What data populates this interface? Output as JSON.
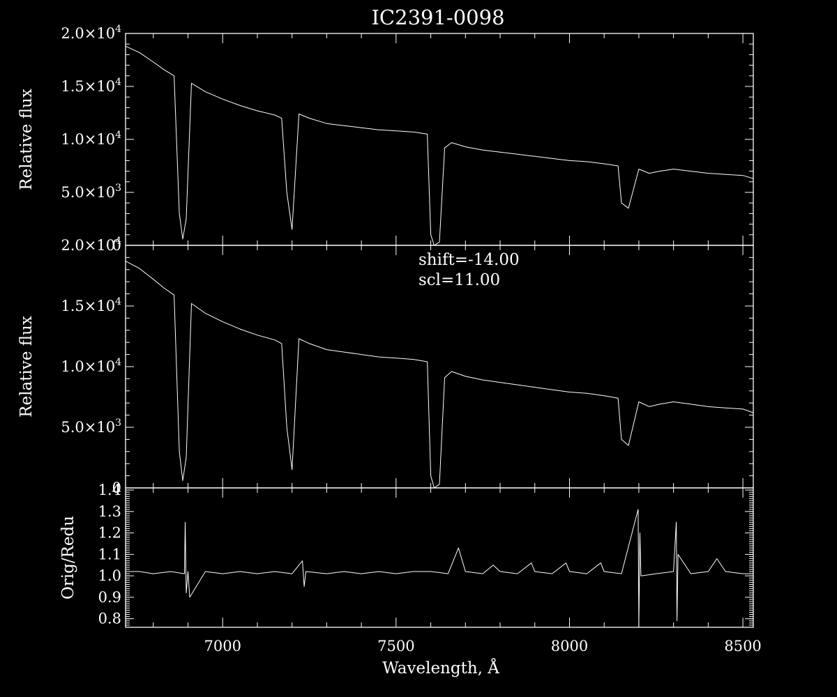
{
  "chart_data": [
    {
      "type": "line",
      "title": "IC2391-0098",
      "xlabel": "",
      "ylabel": "Relative flux",
      "xlim": [
        6720,
        8530
      ],
      "ylim": [
        0,
        20000
      ],
      "yticks": [
        0,
        5000,
        10000,
        15000,
        20000
      ],
      "ytick_labels": [
        {
          "mant": "0",
          "exp": ""
        },
        {
          "mant": "5.0×10",
          "exp": "3"
        },
        {
          "mant": "1.0×10",
          "exp": "4"
        },
        {
          "mant": "1.5×10",
          "exp": "4"
        },
        {
          "mant": "2.0×10",
          "exp": "4"
        }
      ],
      "series": [
        {
          "x": [
            6720,
            6760,
            6800,
            6830,
            6860,
            6875,
            6885,
            6895,
            6910,
            6950,
            7000,
            7050,
            7100,
            7150,
            7170,
            7185,
            7200,
            7220,
            7250,
            7300,
            7350,
            7400,
            7450,
            7500,
            7550,
            7590,
            7600,
            7610,
            7625,
            7640,
            7660,
            7700,
            7750,
            7800,
            7850,
            7900,
            7950,
            8000,
            8050,
            8100,
            8140,
            8150,
            8170,
            8200,
            8230,
            8260,
            8300,
            8350,
            8400,
            8450,
            8500,
            8530
          ],
          "y": [
            18800,
            18200,
            17300,
            16600,
            16000,
            3000,
            600,
            2500,
            15300,
            14500,
            13800,
            13200,
            12700,
            12300,
            12000,
            5000,
            1500,
            12400,
            12000,
            11500,
            11300,
            11100,
            10900,
            10800,
            10700,
            10500,
            1000,
            0,
            300,
            9200,
            9700,
            9300,
            9000,
            8800,
            8600,
            8400,
            8200,
            8000,
            7900,
            7700,
            7500,
            4000,
            3500,
            7200,
            6800,
            7000,
            7200,
            7000,
            6800,
            6700,
            6600,
            6300
          ]
        }
      ]
    },
    {
      "type": "line",
      "xlabel": "",
      "ylabel": "Relative flux",
      "xlim": [
        6720,
        8530
      ],
      "ylim": [
        0,
        20000
      ],
      "yticks": [
        0,
        5000,
        10000,
        15000,
        20000
      ],
      "ytick_labels": [
        {
          "mant": "0",
          "exp": ""
        },
        {
          "mant": "5.0×10",
          "exp": "3"
        },
        {
          "mant": "1.0×10",
          "exp": "4"
        },
        {
          "mant": "1.5×10",
          "exp": "4"
        },
        {
          "mant": "2.0×10",
          "exp": "4"
        }
      ],
      "annotations": [
        "shift=-14.00",
        "scl=11.00"
      ],
      "series": [
        {
          "x": [
            6720,
            6760,
            6800,
            6830,
            6860,
            6875,
            6885,
            6895,
            6910,
            6950,
            7000,
            7050,
            7100,
            7150,
            7170,
            7185,
            7200,
            7220,
            7250,
            7300,
            7350,
            7400,
            7450,
            7500,
            7550,
            7590,
            7600,
            7610,
            7625,
            7640,
            7660,
            7700,
            7750,
            7800,
            7850,
            7900,
            7950,
            8000,
            8050,
            8100,
            8140,
            8150,
            8170,
            8200,
            8230,
            8260,
            8300,
            8350,
            8400,
            8450,
            8500,
            8530
          ],
          "y": [
            18700,
            18100,
            17200,
            16500,
            15900,
            3000,
            600,
            2500,
            15200,
            14400,
            13700,
            13100,
            12600,
            12200,
            11900,
            5000,
            1500,
            12300,
            11900,
            11400,
            11200,
            11000,
            10800,
            10700,
            10600,
            10400,
            1000,
            0,
            300,
            9100,
            9600,
            9200,
            8900,
            8700,
            8500,
            8300,
            8100,
            7900,
            7800,
            7600,
            7400,
            4000,
            3500,
            7100,
            6700,
            6900,
            7100,
            6900,
            6700,
            6600,
            6500,
            6200
          ]
        }
      ]
    },
    {
      "type": "line",
      "xlabel": "Wavelength, Å",
      "ylabel": "Orig/Redu",
      "xlim": [
        6720,
        8530
      ],
      "ylim": [
        0.76,
        1.41
      ],
      "yticks": [
        0.8,
        0.9,
        1.0,
        1.1,
        1.2,
        1.3,
        1.4
      ],
      "ytick_labels": [
        "0.8",
        "0.9",
        "1.0",
        "1.1",
        "1.2",
        "1.3",
        "1.4"
      ],
      "xticks": [
        7000,
        7500,
        8000,
        8500
      ],
      "xtick_labels": [
        "7000",
        "7500",
        "8000",
        "8500"
      ],
      "series": [
        {
          "x": [
            6720,
            6760,
            6800,
            6850,
            6890,
            6892,
            6895,
            6900,
            6905,
            6950,
            7000,
            7050,
            7100,
            7150,
            7200,
            7230,
            7235,
            7240,
            7300,
            7350,
            7400,
            7450,
            7500,
            7550,
            7600,
            7650,
            7680,
            7700,
            7750,
            7780,
            7800,
            7850,
            7890,
            7900,
            7950,
            7990,
            8000,
            8050,
            8090,
            8100,
            8150,
            8198,
            8200,
            8203,
            8206,
            8250,
            8300,
            8308,
            8310,
            8313,
            8350,
            8400,
            8425,
            8450,
            8500,
            8530
          ],
          "y": [
            1.02,
            1.02,
            1.01,
            1.02,
            1.01,
            1.25,
            0.92,
            1.02,
            0.9,
            1.02,
            1.01,
            1.02,
            1.01,
            1.02,
            1.01,
            1.07,
            0.95,
            1.02,
            1.01,
            1.02,
            1.01,
            1.02,
            1.01,
            1.02,
            1.02,
            1.01,
            1.13,
            1.02,
            1.01,
            1.05,
            1.02,
            1.01,
            1.06,
            1.02,
            1.01,
            1.06,
            1.02,
            1.01,
            1.06,
            1.02,
            1.01,
            1.31,
            0.76,
            1.2,
            1.0,
            1.01,
            1.02,
            1.25,
            0.79,
            1.1,
            1.01,
            1.02,
            1.08,
            1.02,
            1.01,
            1.01
          ]
        }
      ]
    }
  ]
}
